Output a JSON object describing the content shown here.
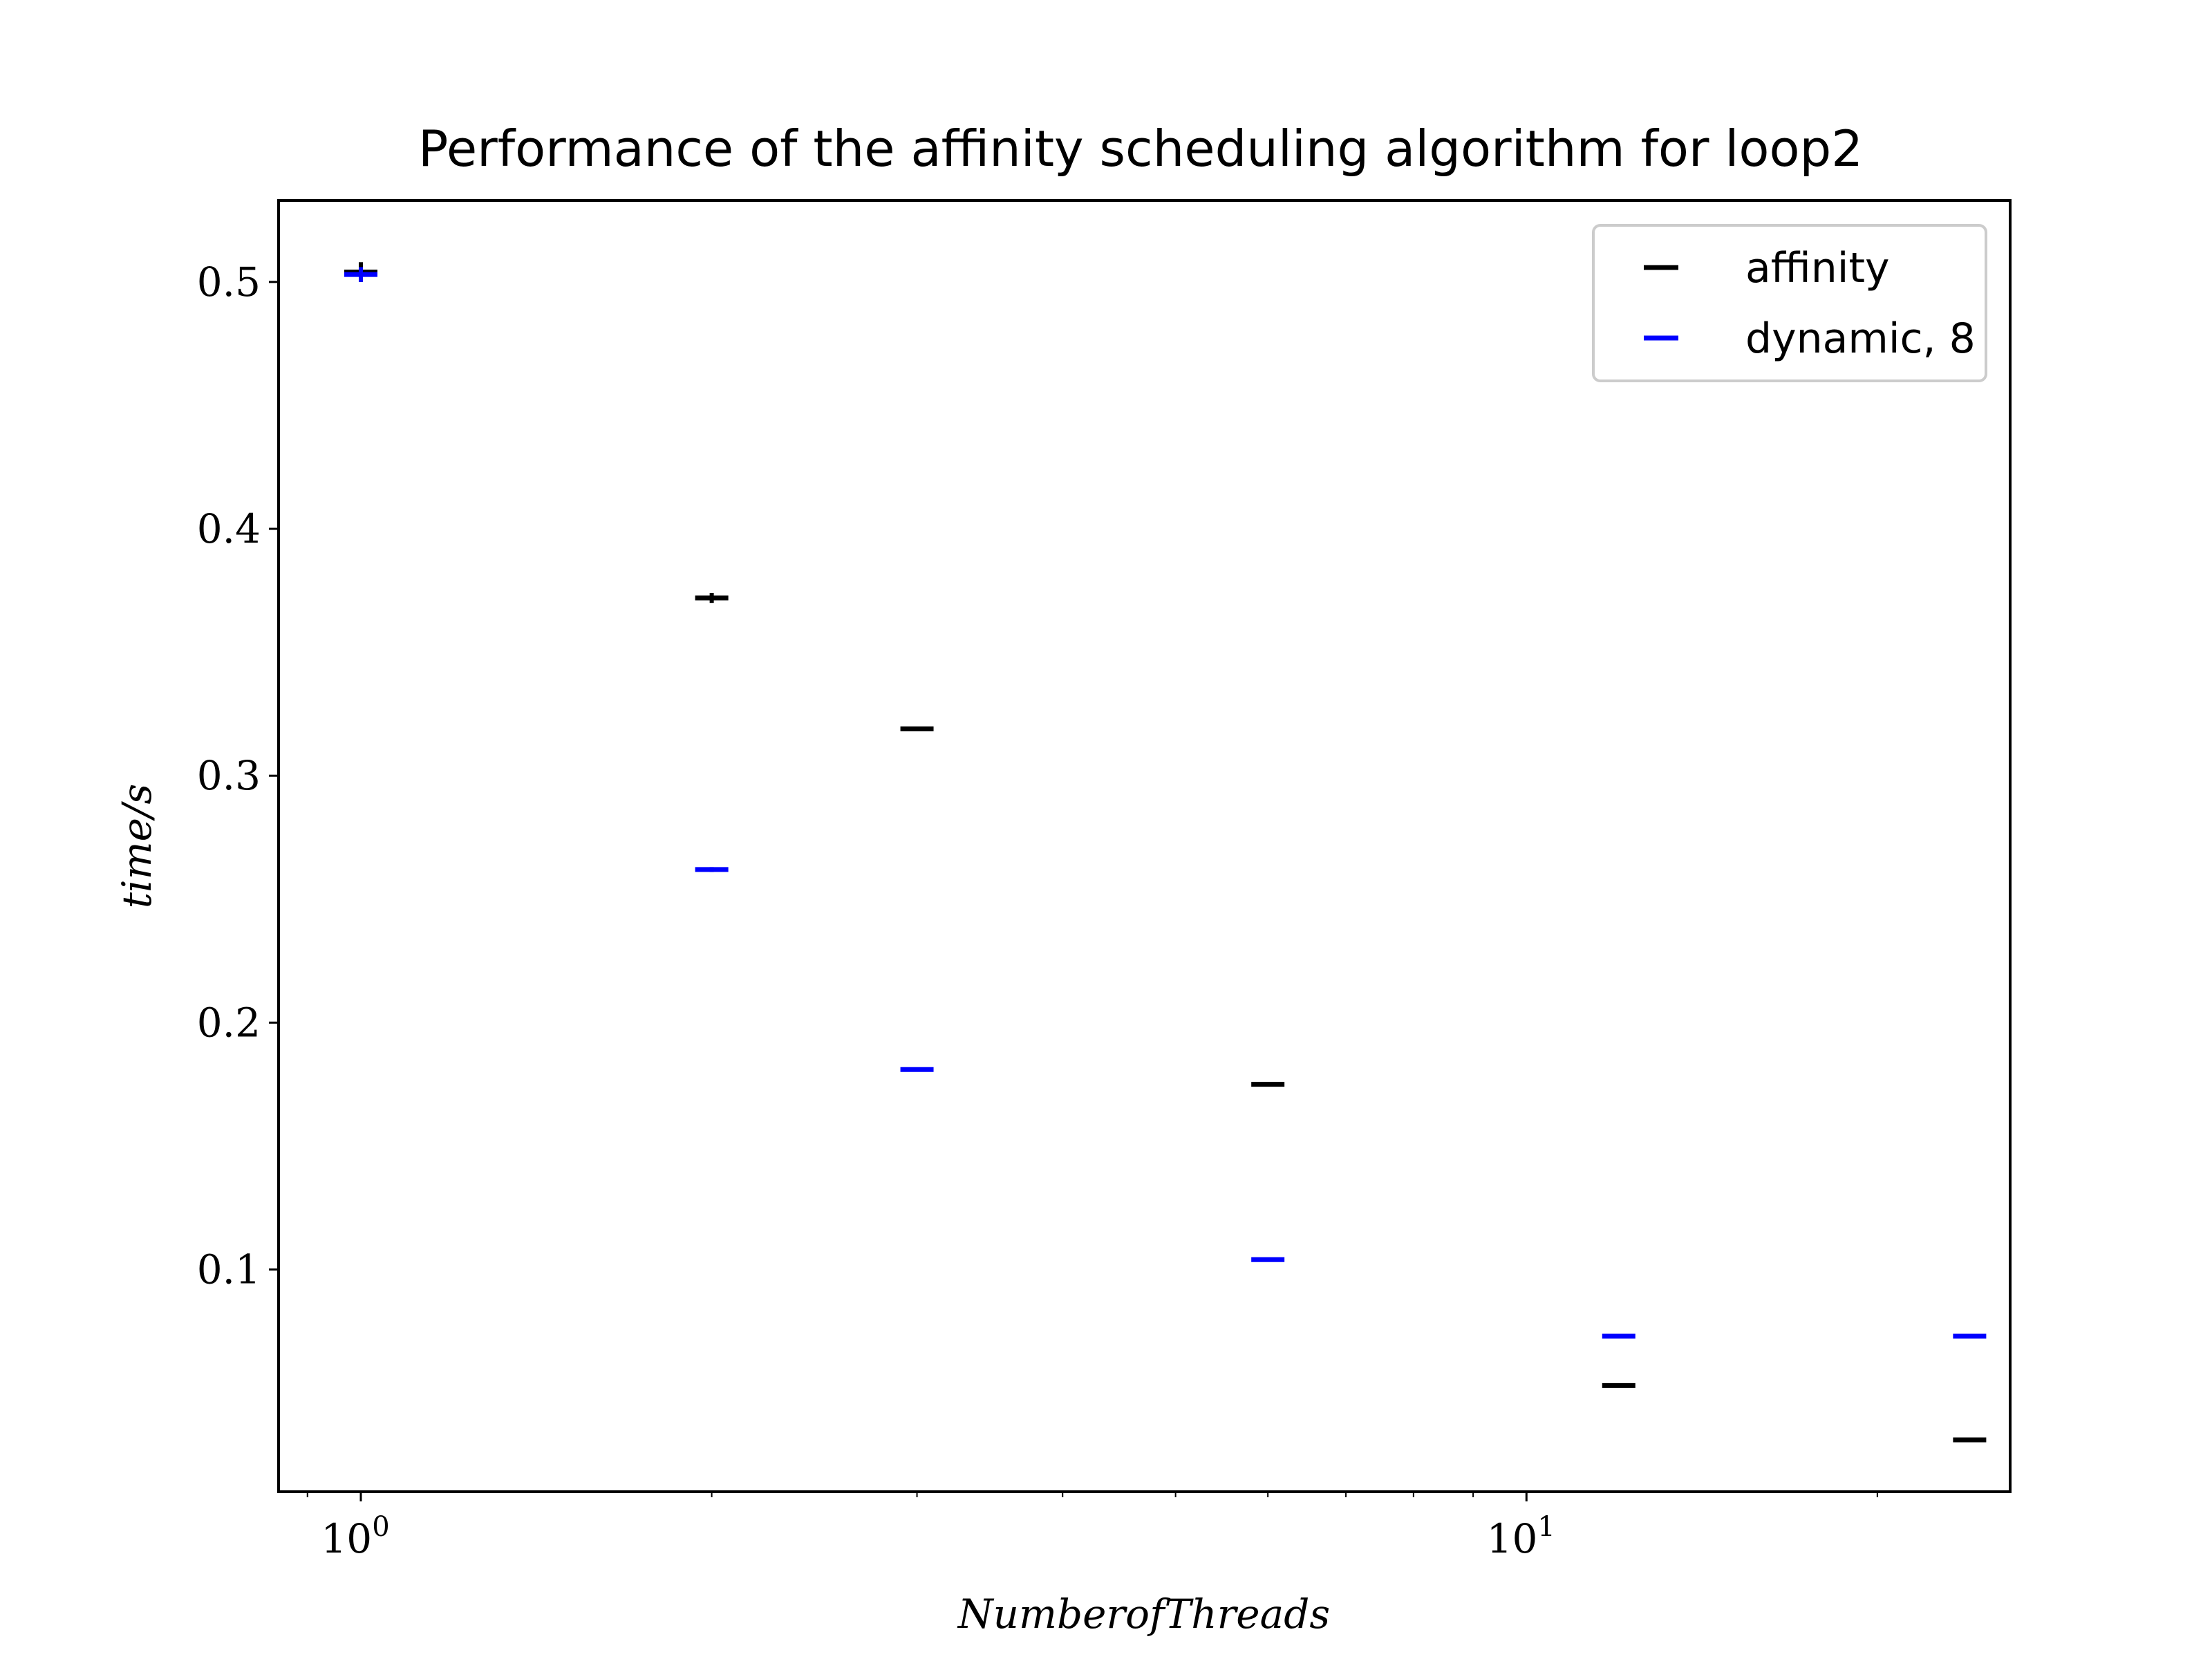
{
  "chart_data": {
    "type": "scatter",
    "title": "Performance of the affinity scheduling algorithm for loop2",
    "xlabel": "NumberofThreads",
    "ylabel": "time/s",
    "xscale": "log",
    "xlim": [
      0.85,
      26
    ],
    "ylim": [
      0.01,
      0.533
    ],
    "x_ticks": [
      {
        "value": 1,
        "base": "10",
        "exp": "0"
      },
      {
        "value": 10,
        "base": "10",
        "exp": "1"
      }
    ],
    "y_ticks": [
      {
        "value": 0.1,
        "label": "0.1"
      },
      {
        "value": 0.2,
        "label": "0.2"
      },
      {
        "value": 0.3,
        "label": "0.3"
      },
      {
        "value": 0.4,
        "label": "0.4"
      },
      {
        "value": 0.5,
        "label": "0.5"
      }
    ],
    "x": [
      1,
      2,
      3,
      6,
      12,
      24
    ],
    "series": [
      {
        "name": "affinity",
        "color": "#000000",
        "marker": "hline",
        "values": [
          0.504,
          0.372,
          0.319,
          0.175,
          0.053,
          0.031
        ],
        "errors": [
          0.004,
          0.002,
          0,
          0,
          0,
          0
        ]
      },
      {
        "name": "dynamic, 8",
        "color": "#0000ff",
        "marker": "hline",
        "values": [
          0.503,
          0.262,
          0.181,
          0.104,
          0.073,
          0.073
        ],
        "errors": [
          0.003,
          0.001,
          0,
          0,
          0,
          0
        ]
      }
    ],
    "legend_position": "top-right",
    "grid": false
  }
}
